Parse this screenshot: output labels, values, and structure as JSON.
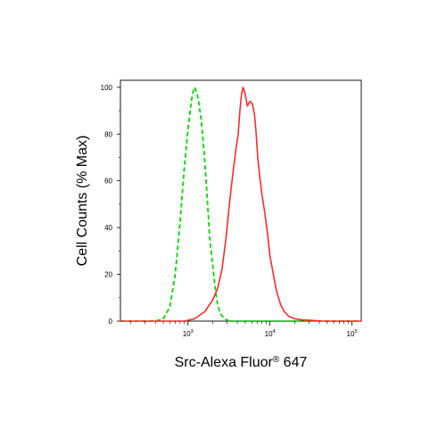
{
  "chart_data": {
    "type": "line",
    "title": "",
    "ylabel": "Cell Counts (% Max)",
    "xlabel": {
      "main": "Src-Alexa Fluor",
      "mark": "®",
      "suffix": " 647"
    },
    "x_scale": "log",
    "xlim": [
      150,
      130000
    ],
    "ylim": [
      0,
      103
    ],
    "y_ticks": [
      0,
      20,
      40,
      60,
      80,
      100
    ],
    "x_ticks": [
      {
        "value": 1000,
        "base": "10",
        "exp": "3"
      },
      {
        "value": 10000,
        "base": "10",
        "exp": "4"
      },
      {
        "value": 100000,
        "base": "10",
        "exp": "5"
      }
    ],
    "grid": false,
    "series": [
      {
        "style": "dashed",
        "color": "#00dd00",
        "x": [
          150,
          400,
          500,
          600,
          700,
          800,
          900,
          1000,
          1100,
          1150,
          1200,
          1280,
          1350,
          1450,
          1550,
          1650,
          1750,
          1850,
          2000,
          2150,
          2300,
          2500,
          2800,
          3200,
          5000,
          130000
        ],
        "y": [
          0,
          0,
          1,
          6,
          20,
          42,
          65,
          82,
          94,
          98,
          100,
          98,
          94,
          86,
          75,
          62,
          48,
          35,
          24,
          14,
          7,
          3,
          1,
          0,
          0,
          0
        ]
      },
      {
        "style": "solid",
        "color": "#ff2a2a",
        "x": [
          150,
          900,
          1200,
          1600,
          2000,
          2300,
          2600,
          2900,
          3200,
          3500,
          3800,
          4100,
          4300,
          4500,
          4700,
          5000,
          5300,
          5700,
          6100,
          6500,
          6800,
          7100,
          7500,
          8000,
          8600,
          9300,
          10000,
          11000,
          12000,
          13500,
          15000,
          17000,
          20000,
          25000,
          32000,
          45000,
          130000
        ],
        "y": [
          0,
          0,
          1,
          4,
          9,
          14,
          22,
          35,
          50,
          62,
          72,
          80,
          90,
          97,
          100,
          97,
          92,
          94,
          93,
          88,
          80,
          70,
          62,
          54,
          47,
          38,
          28,
          20,
          13,
          7,
          4,
          2,
          1,
          0.5,
          0.3,
          0,
          0
        ]
      }
    ]
  }
}
